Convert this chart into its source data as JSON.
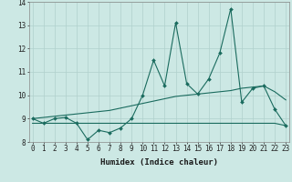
{
  "xlabel": "Humidex (Indice chaleur)",
  "bg_color": "#cce8e4",
  "grid_color": "#b0d0cc",
  "line_color": "#1a6b5e",
  "x_hours": [
    0,
    1,
    2,
    3,
    4,
    5,
    6,
    7,
    8,
    9,
    10,
    11,
    12,
    13,
    14,
    15,
    16,
    17,
    18,
    19,
    20,
    21,
    22,
    23
  ],
  "humidex_line": [
    9.0,
    8.8,
    9.0,
    9.05,
    8.8,
    8.1,
    8.5,
    8.4,
    8.6,
    9.0,
    10.0,
    11.5,
    10.4,
    13.1,
    10.5,
    10.05,
    10.7,
    11.8,
    13.7,
    9.7,
    10.3,
    10.4,
    9.4,
    8.7
  ],
  "smooth_line": [
    9.0,
    9.05,
    9.1,
    9.15,
    9.2,
    9.25,
    9.3,
    9.35,
    9.45,
    9.55,
    9.65,
    9.75,
    9.85,
    9.95,
    10.0,
    10.05,
    10.1,
    10.15,
    10.2,
    10.3,
    10.35,
    10.4,
    10.15,
    9.8
  ],
  "flat_line": [
    8.8,
    8.8,
    8.8,
    8.8,
    8.8,
    8.8,
    8.8,
    8.8,
    8.8,
    8.8,
    8.8,
    8.8,
    8.8,
    8.8,
    8.8,
    8.8,
    8.8,
    8.8,
    8.8,
    8.8,
    8.8,
    8.8,
    8.8,
    8.7
  ],
  "ylim": [
    8,
    14
  ],
  "yticks": [
    8,
    9,
    10,
    11,
    12,
    13,
    14
  ],
  "xticks": [
    0,
    1,
    2,
    3,
    4,
    5,
    6,
    7,
    8,
    9,
    10,
    11,
    12,
    13,
    14,
    15,
    16,
    17,
    18,
    19,
    20,
    21,
    22,
    23
  ],
  "tick_fontsize": 5.5,
  "xlabel_fontsize": 6.5,
  "marker_size": 2.0,
  "line_width": 0.8
}
